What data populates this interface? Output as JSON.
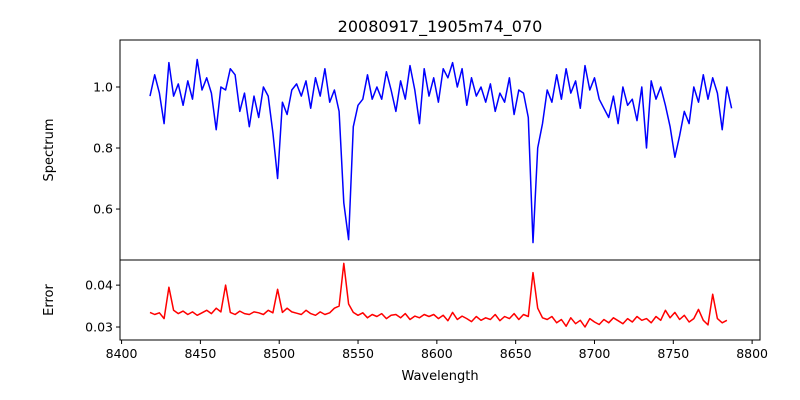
{
  "chart_data": [
    {
      "type": "line",
      "title": "20080917_1905m74_070",
      "xlabel": "",
      "ylabel": "Spectrum",
      "xlim": [
        8399,
        8805
      ],
      "ylim": [
        0.433,
        1.154
      ],
      "yticks": [
        0.6,
        0.8,
        1.0
      ],
      "ytick_labels": [
        "0.6",
        "0.8",
        "1.0"
      ],
      "color": "#0000ff",
      "x_start": 8418,
      "x_step": 3,
      "values": [
        0.97,
        1.04,
        0.98,
        0.88,
        1.08,
        0.97,
        1.01,
        0.94,
        1.02,
        0.96,
        1.09,
        0.99,
        1.03,
        0.98,
        0.86,
        1.0,
        0.99,
        1.06,
        1.04,
        0.92,
        0.98,
        0.87,
        0.97,
        0.9,
        1.0,
        0.97,
        0.85,
        0.7,
        0.95,
        0.91,
        0.99,
        1.01,
        0.97,
        1.02,
        0.93,
        1.03,
        0.97,
        1.06,
        0.95,
        0.99,
        0.92,
        0.62,
        0.5,
        0.87,
        0.94,
        0.96,
        1.04,
        0.96,
        1.0,
        0.96,
        1.05,
        0.99,
        0.92,
        1.02,
        0.96,
        1.07,
        0.99,
        0.88,
        1.06,
        0.97,
        1.03,
        0.95,
        1.06,
        1.03,
        1.08,
        1.0,
        1.06,
        0.94,
        1.03,
        0.97,
        1.0,
        0.95,
        1.01,
        0.92,
        0.98,
        0.95,
        1.03,
        0.91,
        0.99,
        0.98,
        0.9,
        0.49,
        0.8,
        0.88,
        0.99,
        0.95,
        1.04,
        0.96,
        1.06,
        0.98,
        1.02,
        0.93,
        1.07,
        0.99,
        1.03,
        0.96,
        0.93,
        0.9,
        0.97,
        0.88,
        1.0,
        0.94,
        0.96,
        0.89,
        1.0,
        0.8,
        1.02,
        0.96,
        1.0,
        0.94,
        0.87,
        0.77,
        0.84,
        0.92,
        0.88,
        1.0,
        0.95,
        1.04,
        0.96,
        1.03,
        0.98,
        0.86,
        1.0,
        0.93
      ]
    },
    {
      "type": "line",
      "xlabel": "Wavelength",
      "ylabel": "Error",
      "xlim": [
        8399,
        8805
      ],
      "ylim": [
        0.0269,
        0.046
      ],
      "yticks": [
        0.03,
        0.04
      ],
      "ytick_labels": [
        "0.03",
        "0.04"
      ],
      "xticks": [
        8400,
        8450,
        8500,
        8550,
        8600,
        8650,
        8700,
        8750,
        8800
      ],
      "xtick_labels": [
        "8400",
        "8450",
        "8500",
        "8550",
        "8600",
        "8650",
        "8700",
        "8750",
        "8800"
      ],
      "color": "#ff0000",
      "x_start": 8418,
      "x_step": 3,
      "values": [
        0.0335,
        0.033,
        0.0334,
        0.032,
        0.0395,
        0.034,
        0.0332,
        0.0338,
        0.033,
        0.0336,
        0.0328,
        0.0334,
        0.034,
        0.0332,
        0.0345,
        0.0336,
        0.04,
        0.0335,
        0.033,
        0.0338,
        0.0332,
        0.033,
        0.0336,
        0.0334,
        0.033,
        0.034,
        0.0334,
        0.039,
        0.0335,
        0.0345,
        0.0336,
        0.0333,
        0.033,
        0.034,
        0.0332,
        0.0328,
        0.0336,
        0.033,
        0.0334,
        0.0345,
        0.035,
        0.0452,
        0.0355,
        0.0335,
        0.0328,
        0.0334,
        0.0322,
        0.033,
        0.0325,
        0.0332,
        0.032,
        0.0328,
        0.033,
        0.0322,
        0.0332,
        0.0318,
        0.0326,
        0.0322,
        0.033,
        0.0325,
        0.033,
        0.032,
        0.0328,
        0.0315,
        0.0335,
        0.0318,
        0.0326,
        0.032,
        0.0313,
        0.0325,
        0.0316,
        0.0322,
        0.0318,
        0.033,
        0.0315,
        0.0325,
        0.032,
        0.0332,
        0.0318,
        0.033,
        0.0325,
        0.043,
        0.0345,
        0.0322,
        0.0318,
        0.0325,
        0.031,
        0.0318,
        0.0302,
        0.0322,
        0.0308,
        0.0316,
        0.03,
        0.032,
        0.0312,
        0.0306,
        0.0318,
        0.031,
        0.0322,
        0.0315,
        0.0308,
        0.032,
        0.0312,
        0.0325,
        0.0316,
        0.032,
        0.031,
        0.0325,
        0.0316,
        0.034,
        0.0322,
        0.0335,
        0.0318,
        0.0328,
        0.0312,
        0.032,
        0.0342,
        0.0316,
        0.0305,
        0.0378,
        0.032,
        0.031,
        0.0316
      ]
    }
  ]
}
